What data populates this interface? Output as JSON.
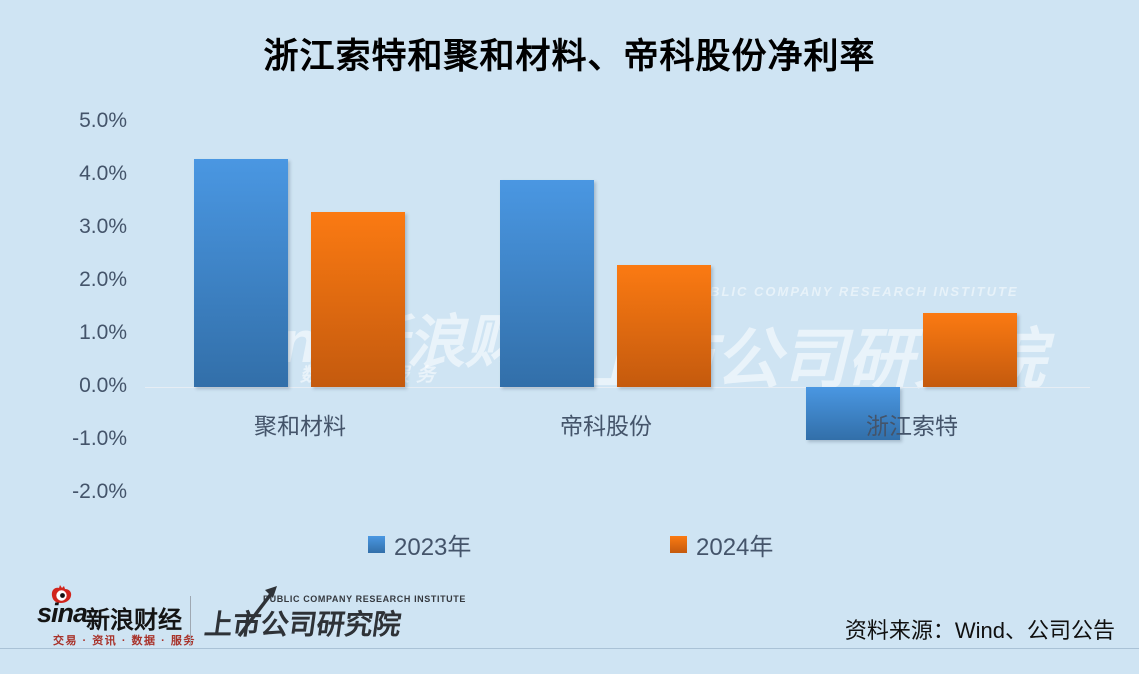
{
  "title": "浙江索特和聚和材料、帝科股份净利率",
  "chart_data": {
    "type": "bar",
    "categories": [
      "聚和材料",
      "帝科股份",
      "浙江索特"
    ],
    "series": [
      {
        "name": "2023年",
        "values": [
          4.3,
          3.9,
          -1.0
        ],
        "color_top": "#4a97e2",
        "color_bottom": "#326fa9",
        "legend_color": "#3c88cd"
      },
      {
        "name": "2024年",
        "values": [
          3.3,
          2.3,
          1.4
        ],
        "color_top": "#fb7a12",
        "color_bottom": "#c45a0e",
        "legend_color": "#e86d0d"
      }
    ],
    "yticks": [
      "5.0%",
      "4.0%",
      "3.0%",
      "2.0%",
      "1.0%",
      "0.0%",
      "-1.0%",
      "-2.0%"
    ],
    "ytick_values": [
      5,
      4,
      3,
      2,
      1,
      0,
      -1,
      -2
    ],
    "ylim": [
      -2.0,
      5.0
    ],
    "grid": false,
    "legend_position": "bottom"
  },
  "watermark": {
    "left_main": "sina新浪财经",
    "left_sub": "数据 · 服务",
    "right_small": "PUBLIC COMPANY RESEARCH INSTITUTE",
    "right_main": "上市公司研究院"
  },
  "footer": {
    "sina_word": "sina",
    "sina_brand": "新浪财经",
    "sina_tagline": "交易 · 资讯 · 数据 · 服务",
    "institute_small": "PUBLIC COMPANY RESEARCH INSTITUTE",
    "institute_name": "上市公司研究院",
    "source": "资料来源：Wind、公司公告"
  },
  "colors": {
    "background": "#cfe4f3",
    "axis_label": "#44546a",
    "zero_line": "#e6edf4",
    "sina_red": "#d1251d",
    "institute_dark": "#2e3237"
  }
}
